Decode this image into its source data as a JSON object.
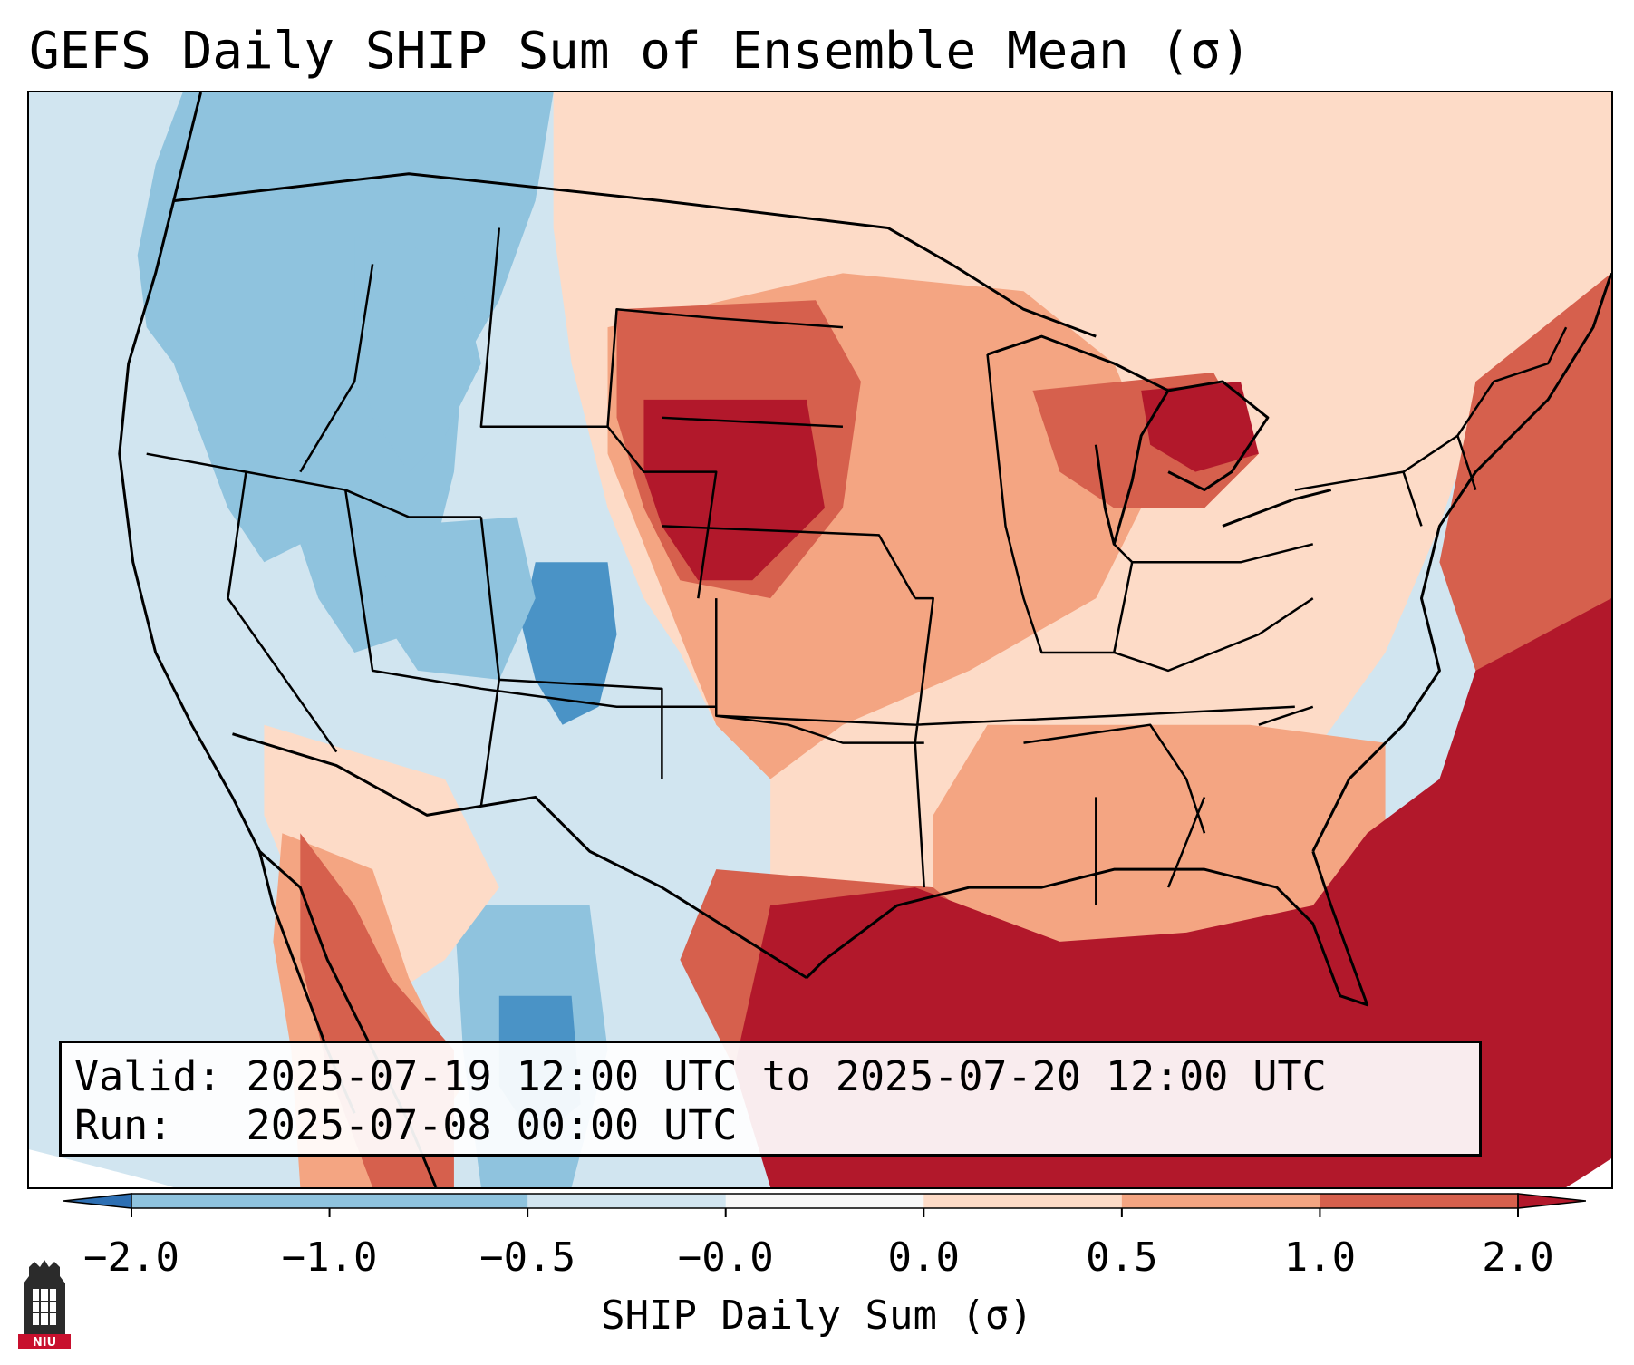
{
  "title": "GEFS Daily SHIP Sum of Ensemble Mean (σ)",
  "valid_line": "Valid: 2025-07-19 12:00 UTC to 2025-07-20 12:00 UTC",
  "run_line": "Run:   2025-07-08 00:00 UTC",
  "colorbar": {
    "label": "SHIP Daily Sum (σ)",
    "ticks": [
      "−2.0",
      "−1.0",
      "−0.5",
      "−0.0",
      "0.0",
      "0.5",
      "1.0",
      "2.0"
    ],
    "colors": [
      "#3a84bf",
      "#8fc3de",
      "#d1e5f0",
      "#f7f7f7",
      "#fddbc7",
      "#f4a582",
      "#d6604d",
      "#b2182b"
    ],
    "extend_low_color": "#2d6fb3",
    "extend_high_color": "#b2182b"
  },
  "logo": {
    "text": "NIU",
    "color": "#c8102e",
    "icon": "university-tower-icon"
  },
  "map": {
    "ocean_pacific_color": "#d1e5f0",
    "gulf_atlantic_color": "#b2182b",
    "border_color": "#000000"
  }
}
